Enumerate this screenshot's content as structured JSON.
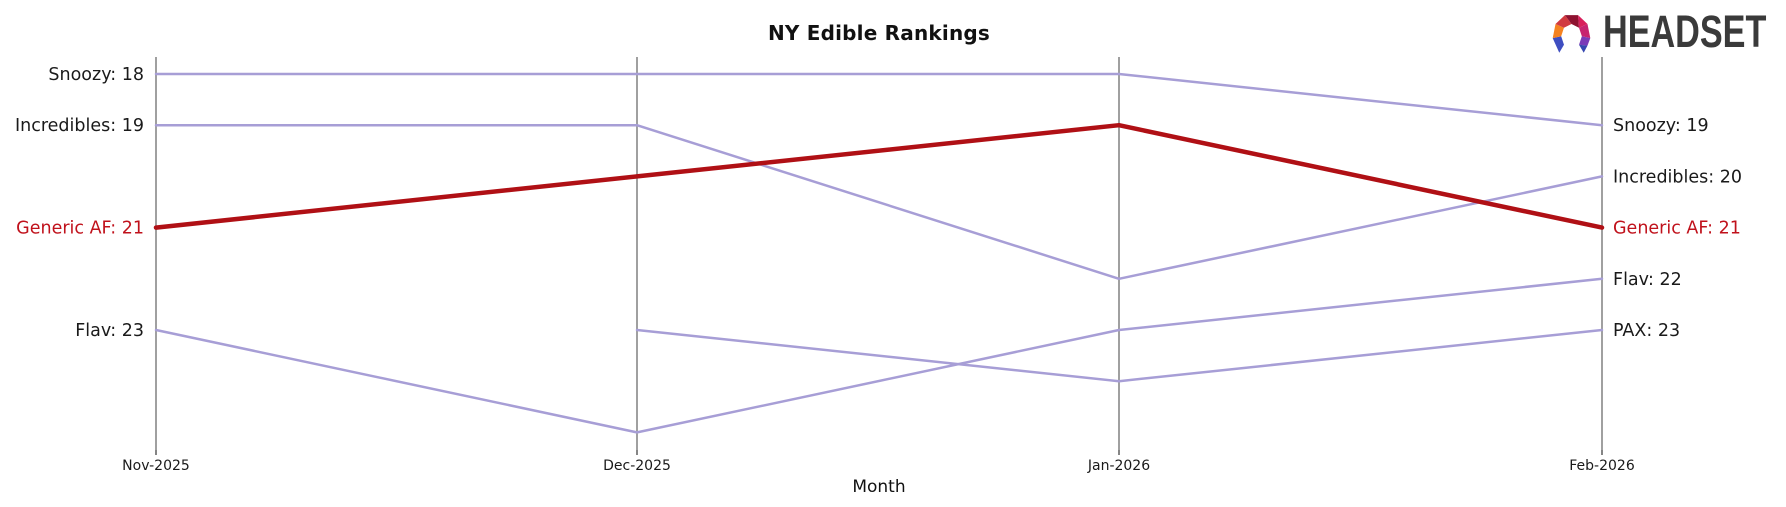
{
  "logo": {
    "text": "HEADSET",
    "text_color": "#3a3a3a",
    "palette": [
      "#3f4ec1",
      "#f58220",
      "#d13a3f",
      "#8e1230",
      "#d91e5b",
      "#c72370",
      "#7a3ab8",
      "#3647b0"
    ]
  },
  "chart_data": {
    "type": "line",
    "variant": "bump-ranking",
    "title": "NY Edible Rankings",
    "xlabel": "Month",
    "categories": [
      "Nov-2025",
      "Dec-2025",
      "Jan-2026",
      "Feb-2026"
    ],
    "y_axis": {
      "unit": "rank",
      "inverted": true,
      "range": [
        18,
        25
      ],
      "grid": false
    },
    "legend": "none",
    "series": [
      {
        "name": "Snoozy",
        "values": [
          18,
          18,
          18,
          19
        ],
        "color": "#a79ed6",
        "emphasis": false
      },
      {
        "name": "Incredibles",
        "values": [
          19,
          19,
          22,
          20
        ],
        "color": "#a79ed6",
        "emphasis": false
      },
      {
        "name": "Generic AF",
        "values": [
          21,
          20,
          19,
          21
        ],
        "color": "#b01015",
        "emphasis": true
      },
      {
        "name": "Flav",
        "values": [
          23,
          25,
          23,
          22
        ],
        "color": "#a79ed6",
        "emphasis": false
      },
      {
        "name": "PAX",
        "values": [
          null,
          23,
          24,
          23
        ],
        "color": "#a79ed6",
        "emphasis": false
      }
    ],
    "edge_labels": {
      "left": [
        {
          "text": "Snoozy: 18",
          "rank": 18,
          "color": "#1a1a1a"
        },
        {
          "text": "Incredibles: 19",
          "rank": 19,
          "color": "#1a1a1a"
        },
        {
          "text": "Generic AF: 21",
          "rank": 21,
          "color": "#c0111b"
        },
        {
          "text": "Flav: 23",
          "rank": 23,
          "color": "#1a1a1a"
        }
      ],
      "right": [
        {
          "text": "Snoozy: 19",
          "rank": 19,
          "color": "#1a1a1a"
        },
        {
          "text": "Incredibles: 20",
          "rank": 20,
          "color": "#1a1a1a"
        },
        {
          "text": "Generic AF: 21",
          "rank": 21,
          "color": "#c0111b"
        },
        {
          "text": "Flav: 22",
          "rank": 22,
          "color": "#1a1a1a"
        },
        {
          "text": "PAX: 23",
          "rank": 23,
          "color": "#1a1a1a"
        }
      ]
    },
    "axis_color": "#a0a0a0",
    "tick_color": "#333333",
    "text_color": "#1a1a1a"
  }
}
